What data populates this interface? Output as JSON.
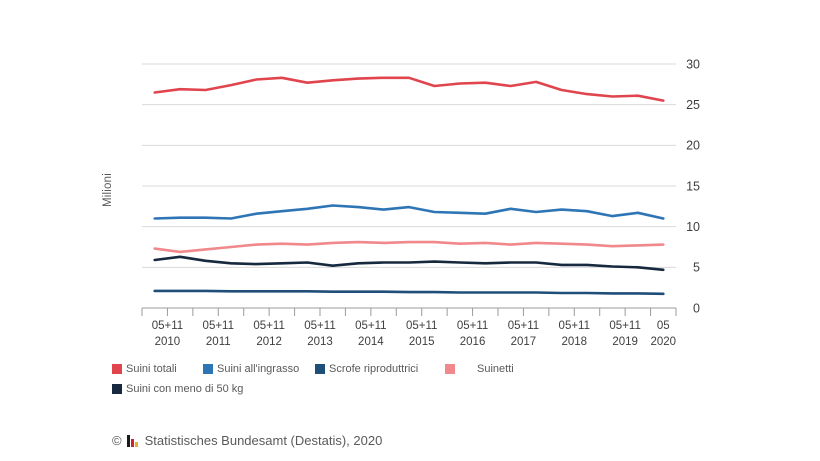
{
  "chart_data": {
    "type": "line",
    "title": "",
    "ylabel": "Milioni",
    "ylim": [
      0,
      30
    ],
    "y_ticks": [
      0,
      5,
      10,
      15,
      20,
      25,
      30
    ],
    "grid": true,
    "legend_position": "bottom-left",
    "x_groups": [
      {
        "months": "05+11",
        "year": "2010"
      },
      {
        "months": "05+11",
        "year": "2011"
      },
      {
        "months": "05+11",
        "year": "2012"
      },
      {
        "months": "05+11",
        "year": "2013"
      },
      {
        "months": "05+11",
        "year": "2014"
      },
      {
        "months": "05+11",
        "year": "2015"
      },
      {
        "months": "05+11",
        "year": "2016"
      },
      {
        "months": "05+11",
        "year": "2017"
      },
      {
        "months": "05+11",
        "year": "2018"
      },
      {
        "months": "05+11",
        "year": "2019"
      },
      {
        "months": "05",
        "year": "2020"
      }
    ],
    "series": [
      {
        "name": "Suini totali",
        "color": "#e0454e",
        "values": [
          26.5,
          26.9,
          26.8,
          27.4,
          28.1,
          28.3,
          27.7,
          28.0,
          28.2,
          28.3,
          28.3,
          27.3,
          27.6,
          27.7,
          27.3,
          27.8,
          26.8,
          26.3,
          26.0,
          26.1,
          25.5
        ]
      },
      {
        "name": "Suini all'ingrasso",
        "color": "#2e75b6",
        "values": [
          11.0,
          11.1,
          11.1,
          11.0,
          11.6,
          11.9,
          12.2,
          12.6,
          12.4,
          12.1,
          12.4,
          11.8,
          11.7,
          11.6,
          12.2,
          11.8,
          12.1,
          11.9,
          11.3,
          11.7,
          11.0
        ]
      },
      {
        "name": "Scrofe riproduttrici",
        "color": "#1f4e79",
        "values": [
          2.1,
          2.1,
          2.1,
          2.05,
          2.05,
          2.05,
          2.05,
          2.0,
          2.0,
          2.0,
          1.95,
          1.95,
          1.9,
          1.9,
          1.9,
          1.9,
          1.85,
          1.85,
          1.8,
          1.8,
          1.75
        ]
      },
      {
        "name": "Suinetti",
        "color": "#f0888c",
        "values": [
          7.3,
          6.9,
          7.2,
          7.5,
          7.8,
          7.9,
          7.8,
          8.0,
          8.1,
          8.0,
          8.1,
          8.1,
          7.9,
          8.0,
          7.8,
          8.0,
          7.9,
          7.8,
          7.6,
          7.7,
          7.8
        ]
      },
      {
        "name": "Suini con meno di 50 kg",
        "color": "#16293f",
        "values": [
          5.9,
          6.3,
          5.8,
          5.5,
          5.4,
          5.5,
          5.6,
          5.2,
          5.5,
          5.6,
          5.6,
          5.7,
          5.6,
          5.5,
          5.6,
          5.6,
          5.3,
          5.3,
          5.1,
          5.0,
          4.7
        ]
      }
    ]
  },
  "icons": {
    "footer_logo": "destatis-bar-chart-icon"
  },
  "footer": {
    "copyright": "©",
    "source": "Statistisches Bundesamt (Destatis), 2020"
  }
}
